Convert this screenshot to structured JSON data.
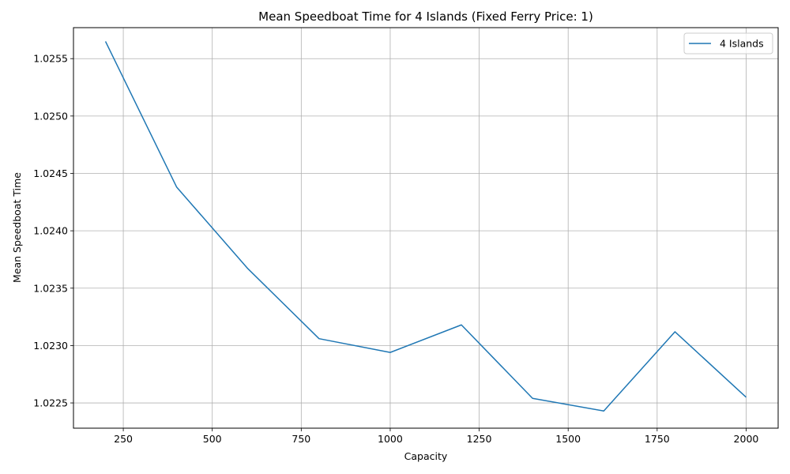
{
  "chart_data": {
    "type": "line",
    "title": "Mean Speedboat Time for 4 Islands (Fixed Ferry Price: 1)",
    "xlabel": "Capacity",
    "ylabel": "Mean Speedboat Time",
    "xlim": [
      110,
      2090
    ],
    "ylim": [
      1.02228,
      1.02577
    ],
    "xticks": [
      250,
      500,
      750,
      1000,
      1250,
      1500,
      1750,
      2000
    ],
    "xtick_labels": [
      "250",
      "500",
      "750",
      "1000",
      "1250",
      "1500",
      "1750",
      "2000"
    ],
    "yticks": [
      1.0225,
      1.023,
      1.0235,
      1.024,
      1.0245,
      1.025,
      1.0255
    ],
    "ytick_labels": [
      "1.0225",
      "1.0230",
      "1.0235",
      "1.0240",
      "1.0245",
      "1.0250",
      "1.0255"
    ],
    "grid": true,
    "legend_position": "top-right",
    "series": [
      {
        "name": "4 Islands",
        "color": "#1f77b4",
        "x": [
          200,
          400,
          600,
          800,
          1000,
          1200,
          1400,
          1600,
          1800,
          2000
        ],
        "y": [
          1.02565,
          1.02438,
          1.02367,
          1.02306,
          1.02294,
          1.02318,
          1.02254,
          1.02243,
          1.02312,
          1.02255
        ]
      }
    ]
  }
}
